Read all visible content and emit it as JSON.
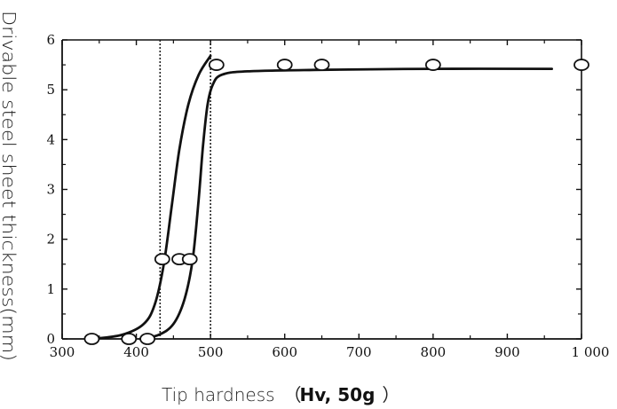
{
  "chart_data": {
    "type": "scatter",
    "xlabel_main": "Tip hardness",
    "xlabel_open": "（",
    "xlabel_unit": "Hv, 50g",
    "xlabel_close": "）",
    "ylabel": "Drivable steel sheet thickness(mm)",
    "xlim": [
      300,
      1000
    ],
    "ylim": [
      0,
      6
    ],
    "x_ticks": [
      {
        "value": 300,
        "label": "300"
      },
      {
        "value": 400,
        "label": "400"
      },
      {
        "value": 500,
        "label": "500"
      },
      {
        "value": 600,
        "label": "600"
      },
      {
        "value": 700,
        "label": "700"
      },
      {
        "value": 800,
        "label": "800"
      },
      {
        "value": 900,
        "label": "900"
      },
      {
        "value": 1000,
        "label": "1 000"
      }
    ],
    "y_ticks": [
      {
        "value": 0,
        "label": "0"
      },
      {
        "value": 1,
        "label": "1"
      },
      {
        "value": 2,
        "label": "2"
      },
      {
        "value": 3,
        "label": "3"
      },
      {
        "value": 4,
        "label": "4"
      },
      {
        "value": 5,
        "label": "5"
      },
      {
        "value": 6,
        "label": "6"
      }
    ],
    "points": [
      {
        "x": 340,
        "y": 0
      },
      {
        "x": 390,
        "y": 0
      },
      {
        "x": 415,
        "y": 0
      },
      {
        "x": 435,
        "y": 1.6
      },
      {
        "x": 458,
        "y": 1.6
      },
      {
        "x": 472,
        "y": 1.6
      },
      {
        "x": 508,
        "y": 5.5
      },
      {
        "x": 600,
        "y": 5.5
      },
      {
        "x": 650,
        "y": 5.5
      },
      {
        "x": 800,
        "y": 5.5
      },
      {
        "x": 1000,
        "y": 5.5
      }
    ],
    "curves": [
      {
        "points": [
          [
            340,
            0
          ],
          [
            380,
            0.08
          ],
          [
            410,
            0.3
          ],
          [
            425,
            0.7
          ],
          [
            437,
            1.5
          ],
          [
            448,
            2.7
          ],
          [
            458,
            3.8
          ],
          [
            470,
            4.7
          ],
          [
            484,
            5.3
          ],
          [
            500,
            5.68
          ]
        ]
      },
      {
        "points": [
          [
            405,
            0
          ],
          [
            430,
            0.08
          ],
          [
            450,
            0.3
          ],
          [
            465,
            0.8
          ],
          [
            476,
            1.6
          ],
          [
            484,
            2.8
          ],
          [
            490,
            3.9
          ],
          [
            496,
            4.7
          ],
          [
            503,
            5.1
          ],
          [
            515,
            5.3
          ],
          [
            550,
            5.37
          ],
          [
            650,
            5.4
          ],
          [
            800,
            5.42
          ],
          [
            960,
            5.42
          ]
        ]
      }
    ],
    "reference_lines_x": [
      432,
      500
    ],
    "grid": false
  }
}
